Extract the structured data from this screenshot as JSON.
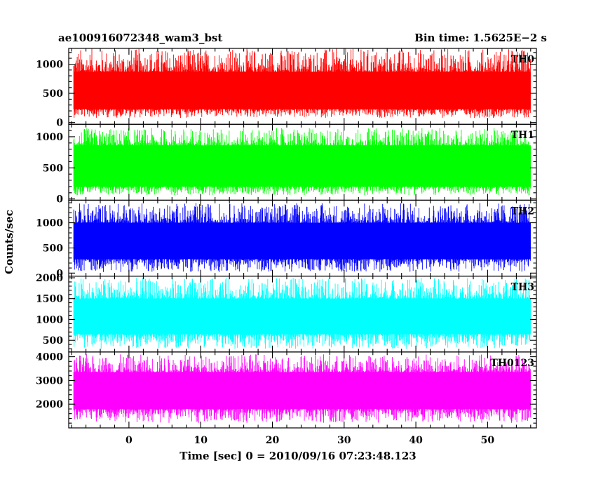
{
  "chart_data": {
    "type": "line",
    "title": "ae100916072348_wam3_bst",
    "subtitle": "Bin time: 1.5625E−2 s",
    "xlabel": "Time [sec] 0 = 2010/09/16 07:23:48.123",
    "ylabel": "Counts/sec",
    "xlim": [
      -8.4,
      56.8
    ],
    "x_ticks": [
      0,
      10,
      20,
      30,
      40,
      50
    ],
    "x_tick_labels": [
      "0",
      "10",
      "20",
      "30",
      "40",
      "50"
    ],
    "data_range_x": [
      -7.7,
      56.0
    ],
    "bin_time_s": 0.015625,
    "grid": false,
    "panels": [
      {
        "name": "TH0",
        "color": "#ff0000",
        "ylim": [
          -30,
          1270
        ],
        "y_ticks": [
          0,
          500,
          1000
        ],
        "y_tick_labels": [
          "0",
          "500",
          "1000"
        ],
        "band_low": 230,
        "band_high": 870,
        "spike_low": 80,
        "spike_high": 1270
      },
      {
        "name": "TH1",
        "color": "#00ff00",
        "ylim": [
          -20,
          1200
        ],
        "y_ticks": [
          0,
          500,
          1000
        ],
        "y_tick_labels": [
          "0",
          "500",
          "1000"
        ],
        "band_low": 200,
        "band_high": 860,
        "spike_low": 60,
        "spike_high": 1140
      },
      {
        "name": "TH2",
        "color": "#0000ff",
        "ylim": [
          -60,
          1450
        ],
        "y_ticks": [
          0,
          500,
          1000
        ],
        "y_tick_labels": [
          "0",
          "500",
          "1000"
        ],
        "band_low": 280,
        "band_high": 1000,
        "spike_low": 20,
        "spike_high": 1400
      },
      {
        "name": "TH3",
        "color": "#00ffff",
        "ylim": [
          220,
          2040
        ],
        "y_ticks": [
          500,
          1000,
          1500,
          2000
        ],
        "y_tick_labels": [
          "500",
          "1000",
          "1500",
          "2000"
        ],
        "band_low": 650,
        "band_high": 1500,
        "spike_low": 300,
        "spike_high": 2000
      },
      {
        "name": "TH0123",
        "color": "#ff00ff",
        "ylim": [
          1000,
          4200
        ],
        "y_ticks": [
          2000,
          3000,
          4000
        ],
        "y_tick_labels": [
          "2000",
          "3000",
          "4000"
        ],
        "band_low": 1800,
        "band_high": 3350,
        "spike_low": 1200,
        "spike_high": 4100
      }
    ]
  }
}
